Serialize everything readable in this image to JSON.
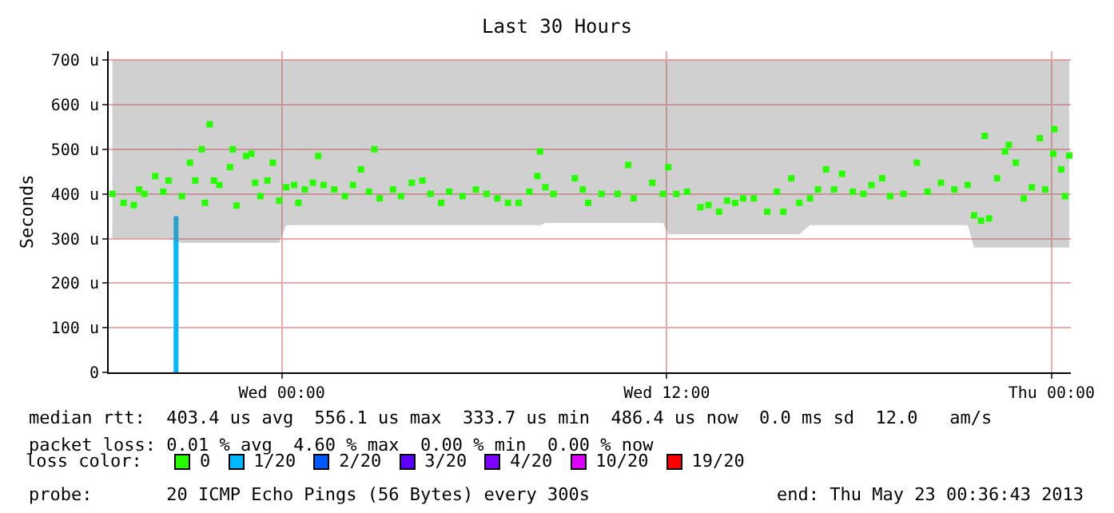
{
  "chart_data": {
    "type": "scatter",
    "title": "Last 30 Hours",
    "ylabel": "Seconds",
    "xlim": [
      "2013-05-21T18:36",
      "2013-05-23T00:36"
    ],
    "xticks": [
      {
        "value": "2013-05-22T00:00",
        "label": "Wed 00:00"
      },
      {
        "value": "2013-05-22T12:00",
        "label": "Wed 12:00"
      },
      {
        "value": "2013-05-23T00:00",
        "label": "Thu 00:00"
      }
    ],
    "ylim": [
      0,
      720
    ],
    "yticks": [
      0,
      {
        "value": 100,
        "label": "100 u"
      },
      {
        "value": 200,
        "label": "200 u"
      },
      {
        "value": 300,
        "label": "300 u"
      },
      {
        "value": 400,
        "label": "400 u"
      },
      {
        "value": 500,
        "label": "500 u"
      },
      {
        "value": 600,
        "label": "600 u"
      },
      {
        "value": 700,
        "label": "700 u"
      }
    ],
    "grid": true,
    "marker": "square",
    "legend": "bottom",
    "legend_title": "loss color:",
    "series": [
      {
        "name": "0",
        "color": "#26ff00",
        "x": [
          "2013-05-21T18:43",
          "2013-05-21T19:04",
          "2013-05-21T19:23",
          "2013-05-21T19:33",
          "2013-05-21T19:43",
          "2013-05-21T20:03",
          "2013-05-21T20:18",
          "2013-05-21T20:28",
          "2013-05-21T20:53",
          "2013-05-21T21:08",
          "2013-05-21T21:18",
          "2013-05-21T21:30",
          "2013-05-21T21:36",
          "2013-05-21T21:45",
          "2013-05-21T21:53",
          "2013-05-21T22:03",
          "2013-05-21T22:23",
          "2013-05-21T22:28",
          "2013-05-21T22:35",
          "2013-05-21T22:53",
          "2013-05-21T23:03",
          "2013-05-21T23:10",
          "2013-05-21T23:20",
          "2013-05-21T23:33",
          "2013-05-21T23:43",
          "2013-05-21T23:55",
          "2013-05-22T00:08",
          "2013-05-22T00:23",
          "2013-05-22T00:31",
          "2013-05-22T00:43",
          "2013-05-22T00:58",
          "2013-05-22T01:08",
          "2013-05-22T01:18",
          "2013-05-22T01:38",
          "2013-05-22T01:58",
          "2013-05-22T02:13",
          "2013-05-22T02:28",
          "2013-05-22T02:43",
          "2013-05-22T02:53",
          "2013-05-22T03:03",
          "2013-05-22T03:28",
          "2013-05-22T03:43",
          "2013-05-22T04:03",
          "2013-05-22T04:23",
          "2013-05-22T04:38",
          "2013-05-22T04:58",
          "2013-05-22T05:13",
          "2013-05-22T05:38",
          "2013-05-22T06:03",
          "2013-05-22T06:23",
          "2013-05-22T06:43",
          "2013-05-22T07:03",
          "2013-05-22T07:23",
          "2013-05-22T07:43",
          "2013-05-22T07:58",
          "2013-05-22T08:03",
          "2013-05-22T08:13",
          "2013-05-22T08:28",
          "2013-05-22T09:08",
          "2013-05-22T09:23",
          "2013-05-22T09:33",
          "2013-05-22T09:58",
          "2013-05-22T10:28",
          "2013-05-22T10:48",
          "2013-05-22T10:58",
          "2013-05-22T11:33",
          "2013-05-22T11:53",
          "2013-05-22T12:03",
          "2013-05-22T12:18",
          "2013-05-22T12:38",
          "2013-05-22T13:03",
          "2013-05-22T13:18",
          "2013-05-22T13:38",
          "2013-05-22T13:53",
          "2013-05-22T14:08",
          "2013-05-22T14:23",
          "2013-05-22T14:43",
          "2013-05-22T15:08",
          "2013-05-22T15:26",
          "2013-05-22T15:38",
          "2013-05-22T15:53",
          "2013-05-22T16:08",
          "2013-05-22T16:28",
          "2013-05-22T16:43",
          "2013-05-22T16:58",
          "2013-05-22T17:13",
          "2013-05-22T17:28",
          "2013-05-22T17:48",
          "2013-05-22T18:08",
          "2013-05-22T18:23",
          "2013-05-22T18:43",
          "2013-05-22T18:58",
          "2013-05-22T19:23",
          "2013-05-22T19:48",
          "2013-05-22T20:08",
          "2013-05-22T20:33",
          "2013-05-22T20:58",
          "2013-05-22T21:23",
          "2013-05-22T21:35",
          "2013-05-22T21:48",
          "2013-05-22T21:55",
          "2013-05-22T22:03",
          "2013-05-22T22:18",
          "2013-05-22T22:33",
          "2013-05-22T22:40",
          "2013-05-22T22:53",
          "2013-05-22T23:08",
          "2013-05-22T23:23",
          "2013-05-22T23:38",
          "2013-05-22T23:48",
          "2013-05-23T00:03",
          "2013-05-23T00:05",
          "2013-05-23T00:18",
          "2013-05-23T00:25",
          "2013-05-23T00:33"
        ],
        "values": [
          400,
          380,
          375,
          410,
          400,
          440,
          405,
          430,
          395,
          470,
          430,
          500,
          380,
          556,
          430,
          420,
          460,
          500,
          374,
          485,
          490,
          425,
          395,
          430,
          470,
          385,
          415,
          420,
          380,
          410,
          425,
          485,
          420,
          410,
          395,
          420,
          455,
          405,
          500,
          390,
          410,
          395,
          425,
          430,
          400,
          380,
          405,
          395,
          410,
          400,
          390,
          380,
          380,
          405,
          440,
          495,
          415,
          400,
          435,
          410,
          380,
          400,
          400,
          465,
          390,
          425,
          400,
          460,
          400,
          405,
          370,
          375,
          360,
          385,
          380,
          390,
          390,
          360,
          405,
          360,
          435,
          380,
          390,
          410,
          455,
          410,
          445,
          405,
          400,
          420,
          435,
          395,
          400,
          470,
          405,
          425,
          410,
          420,
          352,
          340,
          530,
          345,
          435,
          495,
          510,
          470,
          390,
          415,
          525,
          410,
          490,
          545,
          455,
          395,
          486
        ],
        "lower": [
          300,
          300,
          300,
          300,
          300,
          300,
          300,
          300,
          290,
          290,
          290,
          290,
          290,
          290,
          290,
          290,
          290,
          290,
          290,
          290,
          290,
          290,
          290,
          290,
          290,
          290,
          330,
          330,
          330,
          330,
          330,
          330,
          330,
          330,
          330,
          330,
          330,
          330,
          330,
          330,
          330,
          330,
          330,
          330,
          330,
          330,
          330,
          330,
          330,
          330,
          330,
          330,
          330,
          330,
          330,
          330,
          335,
          335,
          335,
          335,
          335,
          335,
          335,
          335,
          335,
          335,
          335,
          310,
          310,
          310,
          310,
          310,
          310,
          310,
          310,
          310,
          310,
          310,
          310,
          310,
          310,
          310,
          330,
          330,
          330,
          330,
          330,
          330,
          330,
          330,
          330,
          330,
          330,
          330,
          330,
          330,
          330,
          330,
          280,
          280,
          280,
          280,
          280,
          280,
          280,
          280,
          280,
          280,
          280,
          280,
          280,
          280,
          280,
          280,
          280
        ],
        "upper": [
          700,
          700,
          700,
          700,
          700,
          700,
          700,
          700,
          700,
          700,
          700,
          700,
          700,
          700,
          700,
          700,
          700,
          700,
          700,
          700,
          700,
          700,
          700,
          700,
          700,
          700,
          700,
          700,
          700,
          700,
          700,
          700,
          700,
          700,
          700,
          700,
          700,
          700,
          700,
          700,
          700,
          700,
          700,
          700,
          700,
          700,
          700,
          700,
          700,
          700,
          700,
          700,
          700,
          700,
          700,
          700,
          700,
          700,
          700,
          700,
          700,
          700,
          700,
          700,
          700,
          700,
          700,
          700,
          700,
          700,
          700,
          700,
          700,
          700,
          700,
          700,
          700,
          700,
          700,
          700,
          700,
          700,
          700,
          700,
          700,
          700,
          700,
          700,
          700,
          700,
          700,
          700,
          700,
          700,
          700,
          700,
          700,
          700,
          700,
          700,
          700,
          700,
          700,
          700,
          700,
          700,
          700,
          700,
          700,
          700,
          700,
          700,
          700,
          700,
          700
        ]
      },
      {
        "name": "1/20",
        "color": "#00b8ff",
        "type": "bar",
        "x": [
          "2013-05-21T20:42"
        ],
        "values": [
          350
        ]
      },
      {
        "name": "2/20",
        "color": "#0059ff"
      },
      {
        "name": "3/20",
        "color": "#5e00ff"
      },
      {
        "name": "4/20",
        "color": "#7e00ff"
      },
      {
        "name": "10/20",
        "color": "#dd00ff"
      },
      {
        "name": "19/20",
        "color": "#ff0000"
      }
    ],
    "annotations": [
      "median rtt:  403.4 us avg  556.1 us max  333.7 us min  486.4 us now  0.0 ms sd  12.0   am/s",
      "packet loss: 0.01 % avg  4.60 % max  0.00 % min  0.00 % now",
      "probe:       20 ICMP Echo Pings (56 Bytes) every 300s",
      "end: Thu May 23 00:36:43 2013"
    ]
  }
}
